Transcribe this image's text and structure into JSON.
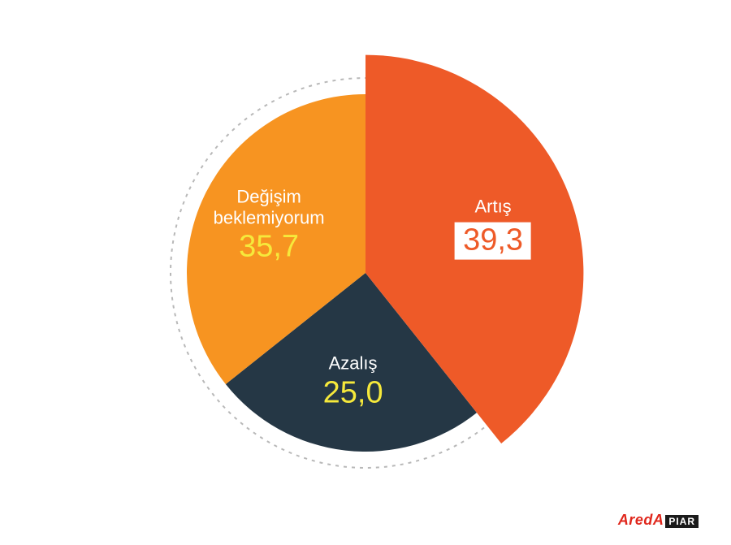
{
  "chart": {
    "type": "pie",
    "background_color": "#ffffff",
    "base_radius": 220,
    "start_angle_deg": -90,
    "guide_circle": {
      "radius": 240,
      "stroke": "#b8b8b8",
      "stroke_width": 2,
      "dash": "4 6"
    },
    "label_name_color": "#ffffff",
    "label_name_fontsize": 22,
    "label_value_fontsize": 38,
    "slices": [
      {
        "id": "artis",
        "label": "Artış",
        "value_text": "39,3",
        "value": 39.3,
        "color": "#ee5a28",
        "radius_scale": 1.22,
        "value_color": "#ee5a28",
        "value_bg": true,
        "label_r_factor": 0.62
      },
      {
        "id": "azalis",
        "label": "Azalış",
        "value_text": "25,0",
        "value": 25.0,
        "color": "#253745",
        "radius_scale": 1.0,
        "value_color": "#f6e93b",
        "value_bg": false,
        "label_r_factor": 0.62
      },
      {
        "id": "degisim",
        "label": "Değişim\nbeklemiyorum",
        "value_text": "35,7",
        "value": 35.7,
        "color": "#f79421",
        "radius_scale": 1.0,
        "value_color": "#f6e93b",
        "value_bg": false,
        "label_r_factor": 0.6
      }
    ]
  },
  "brand": {
    "part_a": "AredA",
    "part_a_color": "#e0271c",
    "part_b": "PIAR",
    "fontsize": 18
  }
}
